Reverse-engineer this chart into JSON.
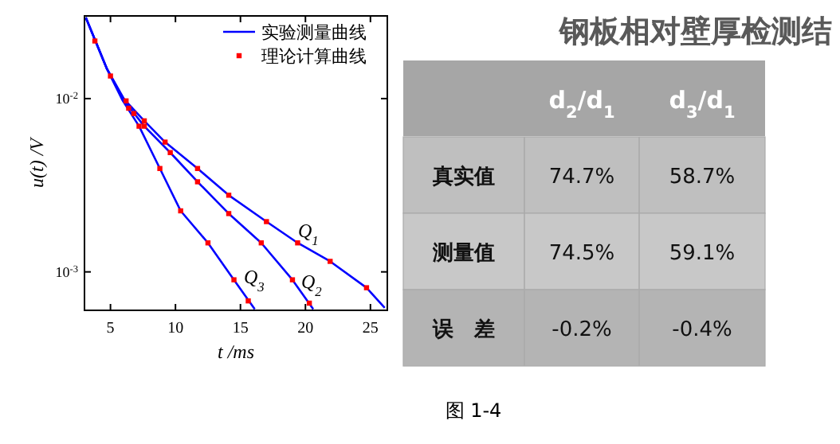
{
  "chart_data": [
    {
      "type": "line",
      "xlabel": "t /ms",
      "ylabel": "u(t) /V",
      "log": "y",
      "xlim": [
        3,
        26.3
      ],
      "ylim": [
        0.0006,
        0.03
      ],
      "xticks": [
        5,
        10,
        15,
        20,
        25
      ],
      "yticks": [
        {
          "value": 0.01,
          "label": "10$^{-2}$"
        },
        {
          "value": 0.001,
          "label": "10$^{-3}$"
        }
      ],
      "legend": "top right",
      "series": [
        {
          "name": "实验测量曲线",
          "type": "line",
          "color": "#0000ff",
          "x": [
            3.1,
            4.7,
            5.9,
            7.6,
            9.2,
            11.7,
            14.1,
            17.0,
            19.4,
            21.9,
            24.7,
            26.1
          ],
          "values": [
            0.0294,
            0.015,
            0.0102,
            0.00744,
            0.00561,
            0.00395,
            0.00277,
            0.00195,
            0.00147,
            0.00115,
            0.00081,
            0.00062
          ]
        },
        {
          "type": "line",
          "color": "#0000ff",
          "x": [
            3.1,
            4.7,
            6.3,
            7.6,
            9.6,
            11.7,
            14.1,
            16.6,
            19.0,
            20.6
          ],
          "values": [
            0.0294,
            0.015,
            0.0092,
            0.00693,
            0.00488,
            0.00331,
            0.00217,
            0.00147,
            0.0009,
            0.00061
          ]
        },
        {
          "type": "line",
          "color": "#0000ff",
          "x": [
            3.1,
            4.7,
            5.9,
            7.2,
            8.8,
            10.4,
            12.5,
            14.5,
            16.1
          ],
          "values": [
            0.0294,
            0.015,
            0.00986,
            0.00693,
            0.00395,
            0.00225,
            0.00147,
            0.0009,
            0.00061
          ]
        },
        {
          "name": "理论计算曲线",
          "type": "scatter",
          "marker": "square",
          "color": "#ff0000",
          "x": [
            3.8,
            5.0,
            6.2,
            7.6,
            9.2,
            11.7,
            14.1,
            17.0,
            19.4,
            21.9,
            24.7
          ],
          "values": [
            0.0215,
            0.0135,
            0.0097,
            0.00744,
            0.00561,
            0.00395,
            0.00277,
            0.00195,
            0.00147,
            0.00115,
            0.00081
          ]
        },
        {
          "type": "scatter",
          "marker": "square",
          "color": "#ff0000",
          "x": [
            6.8,
            7.6,
            9.6,
            11.7,
            14.1,
            16.6,
            19.0,
            20.3
          ],
          "values": [
            0.0082,
            0.00693,
            0.00488,
            0.00331,
            0.00217,
            0.00147,
            0.0009,
            0.00066
          ]
        },
        {
          "type": "scatter",
          "marker": "square",
          "color": "#ff0000",
          "x": [
            6.4,
            7.2,
            8.8,
            10.4,
            12.5,
            14.5,
            15.6
          ],
          "values": [
            0.0088,
            0.00693,
            0.00395,
            0.00225,
            0.00147,
            0.0009,
            0.00068
          ]
        }
      ],
      "annotations": [
        "Q$_{1}$",
        "Q$_{2}$",
        "Q$_{3}$"
      ]
    },
    {
      "type": "other",
      "title": "钢板相对壁厚检测结",
      "categories": [
        "d$_{2}$/d$_{1}$",
        "d$_{3}$/d$_{1}$"
      ],
      "y_categories": [
        "真实值",
        "测量值",
        "误　差"
      ],
      "cell_labels": [
        [
          "74.7%",
          "58.7%"
        ],
        [
          "74.5%",
          "59.1%"
        ],
        [
          "-0.2%",
          "-0.4%"
        ]
      ],
      "annotations": [
        "图 1-4"
      ]
    }
  ]
}
